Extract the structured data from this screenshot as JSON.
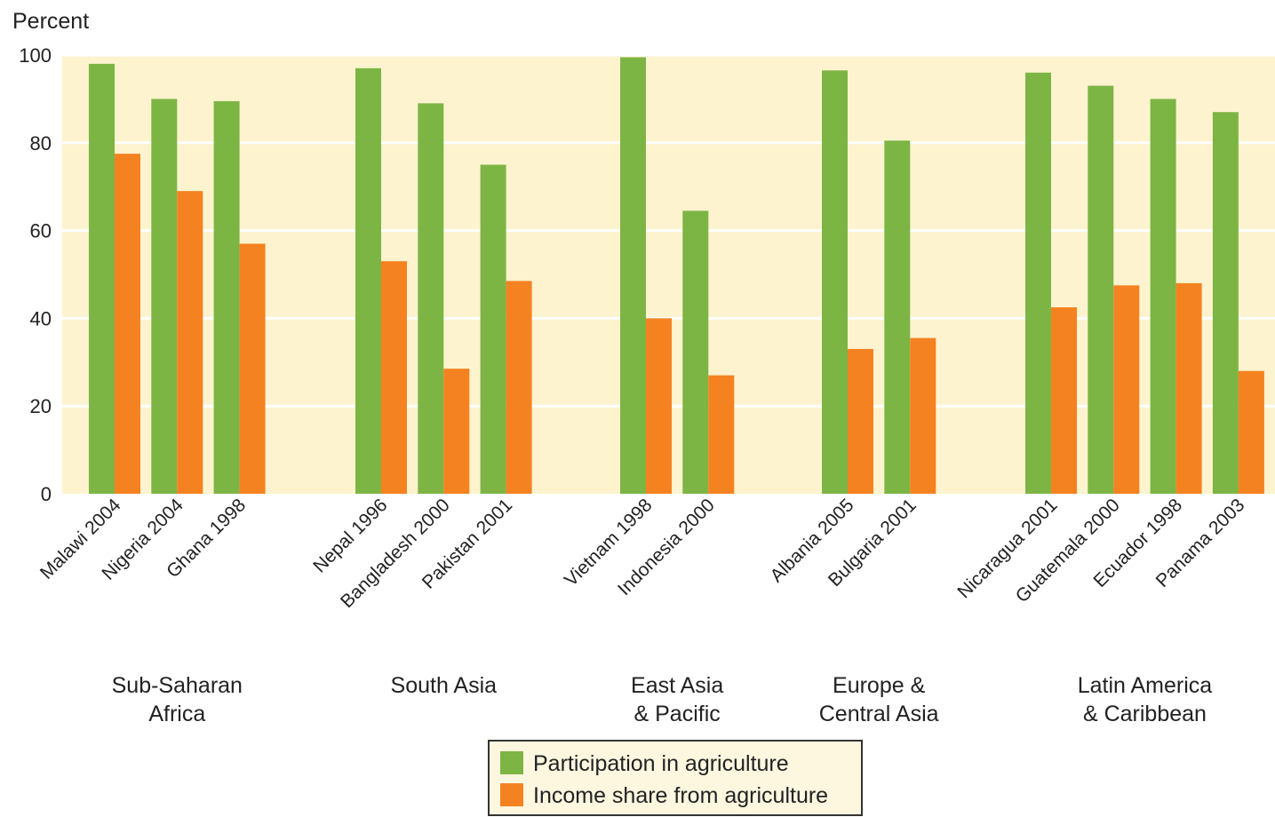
{
  "chart_data": {
    "type": "bar",
    "ylabel": "Percent",
    "ylim": [
      0,
      100
    ],
    "yticks": [
      0,
      20,
      40,
      60,
      80,
      100
    ],
    "grid": true,
    "legend_position": "bottom-center",
    "colors": {
      "plot_background": "#fdf3cf",
      "gridline": "#ffffff",
      "participation": "#7db544",
      "income": "#f58220",
      "legend_background": "#fdf7e0"
    },
    "groups": [
      {
        "label_lines": [
          "Sub-Saharan",
          "Africa"
        ],
        "categories": [
          "Malawi 2004",
          "Nigeria 2004",
          "Ghana 1998"
        ],
        "participation": [
          98,
          90,
          89.5
        ],
        "income": [
          77.5,
          69,
          57
        ]
      },
      {
        "label_lines": [
          "South Asia"
        ],
        "categories": [
          "Nepal 1996",
          "Bangladesh 2000",
          "Pakistan 2001"
        ],
        "participation": [
          97,
          89,
          75
        ],
        "income": [
          53,
          28.5,
          48.5
        ]
      },
      {
        "label_lines": [
          "East Asia",
          "& Pacific"
        ],
        "categories": [
          "Vietnam 1998",
          "Indonesia 2000"
        ],
        "participation": [
          99.5,
          64.5
        ],
        "income": [
          40,
          27
        ]
      },
      {
        "label_lines": [
          "Europe &",
          "Central Asia"
        ],
        "categories": [
          "Albania 2005",
          "Bulgaria 2001"
        ],
        "participation": [
          96.5,
          80.5
        ],
        "income": [
          33,
          35.5
        ]
      },
      {
        "label_lines": [
          "Latin America",
          "& Caribbean"
        ],
        "categories": [
          "Nicaragua 2001",
          "Guatemala 2000",
          "Ecuador 1998",
          "Panama 2003"
        ],
        "participation": [
          96,
          93,
          90,
          87
        ],
        "income": [
          42.5,
          47.5,
          48,
          28
        ]
      }
    ],
    "series": [
      {
        "name": "Participation in agriculture",
        "key": "participation"
      },
      {
        "name": "Income share from agriculture",
        "key": "income"
      }
    ]
  }
}
